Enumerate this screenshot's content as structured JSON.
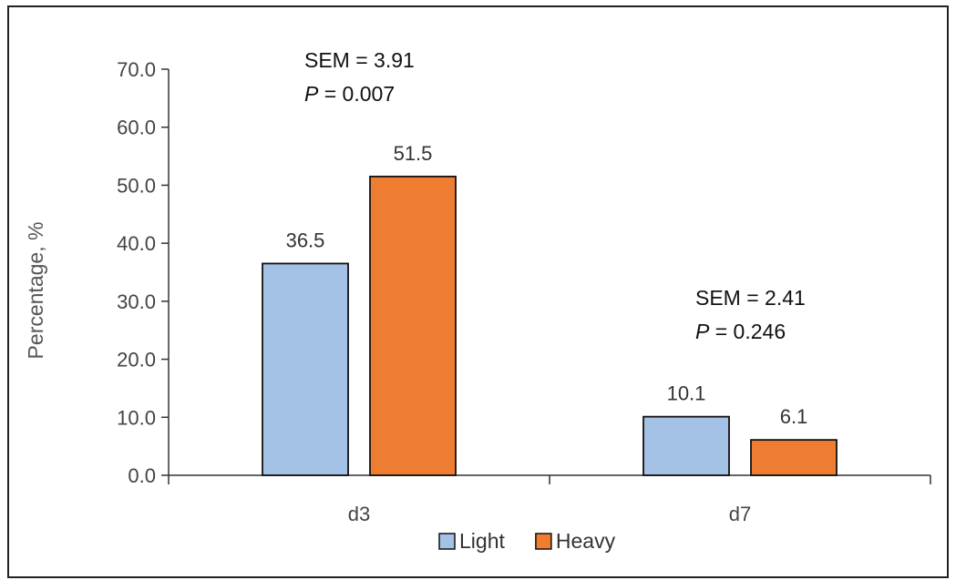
{
  "chart_data": {
    "type": "bar",
    "categories": [
      "d3",
      "d7"
    ],
    "series": [
      {
        "name": "Light",
        "color": "#a4c2e6",
        "values": [
          36.5,
          10.1
        ],
        "labels": [
          "36.5",
          "10.1"
        ]
      },
      {
        "name": "Heavy",
        "color": "#ee7d31",
        "values": [
          51.5,
          6.1
        ],
        "labels": [
          "51.5",
          "6.1"
        ]
      }
    ],
    "ylabel": "Percentage, %",
    "xlabel": "",
    "ylim": [
      0,
      70
    ],
    "yticks": [
      "0.0",
      "10.0",
      "20.0",
      "30.0",
      "40.0",
      "50.0",
      "60.0",
      "70.0"
    ],
    "grid": false,
    "legend_position": "bottom",
    "annotations": [
      {
        "category": "d3",
        "sem": "SEM = 3.91",
        "p_label": "P",
        "p_value": "= 0.007"
      },
      {
        "category": "d7",
        "sem": "SEM = 2.41",
        "p_label": "P",
        "p_value": "= 0.246"
      }
    ]
  }
}
